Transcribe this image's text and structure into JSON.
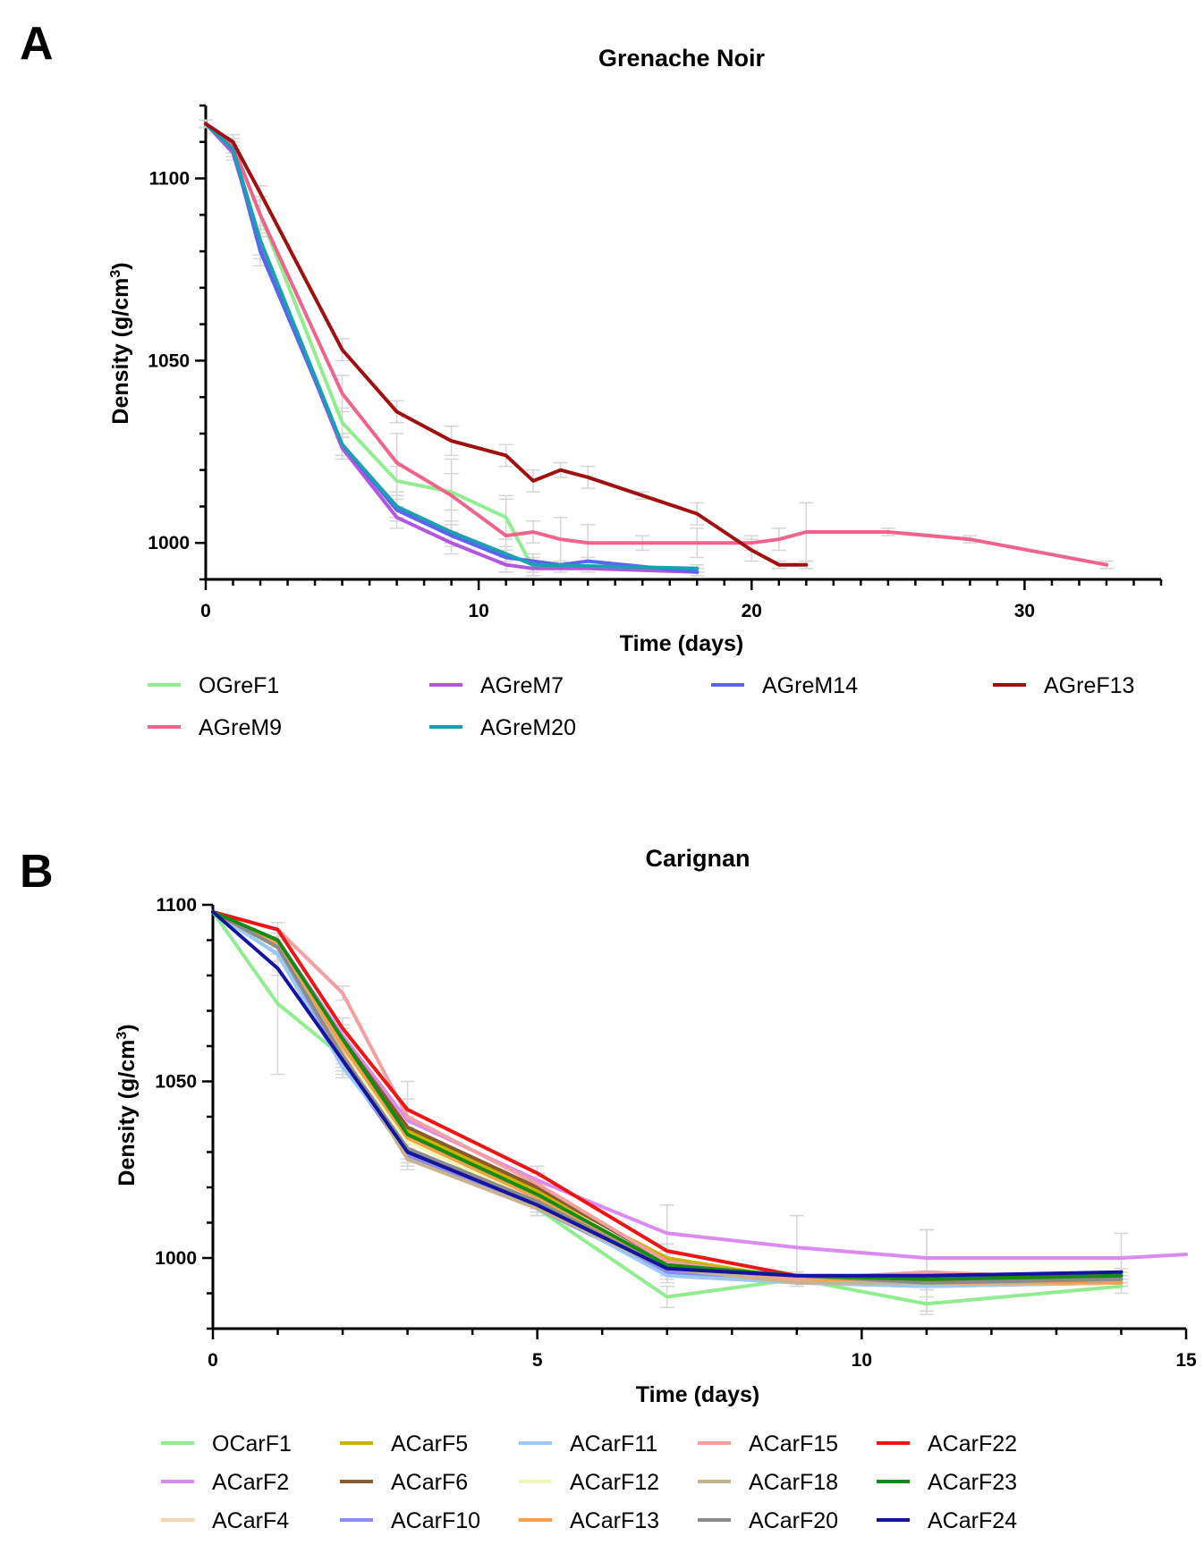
{
  "chart_data": [
    {
      "panel": "A",
      "type": "line",
      "title": "Grenache  Noir",
      "xlabel": "Time (days)",
      "ylabel": "Density (g/cm",
      "ylabel_sup": "3",
      "ylabel_close": ")",
      "xlim": [
        0,
        35
      ],
      "ylim": [
        990,
        1120
      ],
      "xticks": [
        0,
        10,
        20,
        30
      ],
      "yticks": [
        1000,
        1050,
        1100
      ],
      "series": [
        {
          "name": "OGreF1",
          "color": "#90EE90",
          "x": [
            0,
            1,
            2,
            5,
            7,
            9,
            11,
            12
          ],
          "y": [
            1115,
            1109,
            1090,
            1033,
            1017,
            1014,
            1007,
            993
          ],
          "err": [
            1,
            2,
            5,
            4,
            4,
            5,
            6,
            2
          ]
        },
        {
          "name": "AGreM7",
          "color": "#B455E0",
          "x": [
            0,
            1,
            2,
            5,
            7,
            9,
            11,
            12,
            13,
            14,
            18
          ],
          "y": [
            1115,
            1107,
            1082,
            1026,
            1007,
            1000,
            994,
            993,
            993,
            993,
            992
          ],
          "err": [
            1,
            2,
            4,
            3,
            3,
            3,
            2,
            2,
            1,
            1,
            1
          ]
        },
        {
          "name": "AGreM9",
          "color": "#F0648C",
          "x": [
            0,
            1,
            2,
            5,
            7,
            9,
            11,
            12,
            13,
            14,
            16,
            18,
            20,
            21,
            22,
            25,
            28,
            33
          ],
          "y": [
            1115,
            1109,
            1090,
            1041,
            1022,
            1013,
            1002,
            1003,
            1001,
            1000,
            1000,
            1000,
            1000,
            1001,
            1003,
            1003,
            1001,
            994
          ],
          "err": [
            1,
            2,
            5,
            5,
            8,
            10,
            10,
            3,
            6,
            5,
            2,
            4,
            2,
            3,
            8,
            1,
            1,
            1
          ]
        },
        {
          "name": "AGreM14",
          "color": "#5A64EE",
          "x": [
            0,
            1,
            2,
            5,
            7,
            9,
            11,
            12,
            13,
            14,
            18
          ],
          "y": [
            1115,
            1108,
            1080,
            1027,
            1009,
            1002,
            996,
            995,
            994,
            995,
            992
          ],
          "err": [
            1,
            2,
            4,
            3,
            3,
            3,
            2,
            2,
            1,
            1,
            1
          ]
        },
        {
          "name": "AGreM20",
          "color": "#1AA0B0",
          "x": [
            0,
            1,
            2,
            5,
            7,
            9,
            11,
            12,
            18
          ],
          "y": [
            1115,
            1108,
            1083,
            1027,
            1010,
            1003,
            997,
            994,
            993
          ],
          "err": [
            1,
            2,
            4,
            3,
            3,
            3,
            2,
            2,
            1
          ]
        },
        {
          "name": "AGreF13",
          "color": "#A01010",
          "x": [
            0,
            1,
            2,
            5,
            7,
            9,
            11,
            12,
            13,
            14,
            16,
            18,
            20,
            21,
            22
          ],
          "y": [
            1115,
            1110,
            1096,
            1053,
            1036,
            1028,
            1024,
            1017,
            1020,
            1018,
            1013,
            1008,
            998,
            994,
            994
          ],
          "err": [
            1,
            2,
            2,
            3,
            3,
            4,
            3,
            3,
            2,
            3,
            1,
            3,
            3,
            1,
            1
          ]
        }
      ],
      "legend_rows": [
        [
          "OGreF1",
          "AGreM7",
          "AGreM14",
          "AGreF13"
        ],
        [
          "AGreM9",
          "AGreM20"
        ]
      ]
    },
    {
      "panel": "B",
      "type": "line",
      "title": "Carignan",
      "xlabel": "Time (days)",
      "ylabel": "Density (g/cm",
      "ylabel_sup": "3",
      "ylabel_close": ")",
      "xlim": [
        0,
        15
      ],
      "ylim": [
        980,
        1100
      ],
      "xticks": [
        0,
        5,
        10,
        15
      ],
      "yticks": [
        1000,
        1050,
        1100
      ],
      "series": [
        {
          "name": "OCarF1",
          "color": "#90EE90",
          "x": [
            0,
            1,
            2,
            3,
            5,
            7,
            9,
            11,
            14
          ],
          "y": [
            1098,
            1072,
            1057,
            1034,
            1014,
            989,
            994,
            987,
            992
          ],
          "err": [
            0,
            20,
            4,
            3,
            2,
            3,
            2,
            2,
            2
          ]
        },
        {
          "name": "ACarF2",
          "color": "#DA8AF0",
          "x": [
            0,
            1,
            2,
            3,
            5,
            7,
            9,
            11,
            14,
            15
          ],
          "y": [
            1098,
            1090,
            1063,
            1039,
            1022,
            1007,
            1003,
            1000,
            1000,
            1001
          ],
          "err": [
            0,
            2,
            3,
            3,
            2,
            8,
            9,
            8,
            7,
            0
          ]
        },
        {
          "name": "ACarF4",
          "color": "#F5D6B4",
          "x": [
            0,
            1,
            2,
            3,
            5,
            7,
            9,
            11,
            14
          ],
          "y": [
            1098,
            1088,
            1058,
            1030,
            1015,
            996,
            993,
            993,
            993
          ],
          "err": [
            0,
            2,
            3,
            3,
            2,
            2,
            1,
            1,
            1
          ]
        },
        {
          "name": "ACarF5",
          "color": "#C8B400",
          "x": [
            0,
            1,
            2,
            3,
            5,
            7,
            9,
            11,
            14
          ],
          "y": [
            1098,
            1089,
            1061,
            1036,
            1019,
            1000,
            994,
            993,
            993
          ],
          "err": [
            0,
            2,
            3,
            3,
            2,
            2,
            1,
            1,
            1
          ]
        },
        {
          "name": "ACarF6",
          "color": "#8B5A2B",
          "x": [
            0,
            1,
            2,
            3,
            5,
            7,
            9,
            11,
            14
          ],
          "y": [
            1098,
            1089,
            1062,
            1037,
            1020,
            999,
            994,
            994,
            994
          ],
          "err": [
            0,
            2,
            3,
            3,
            2,
            2,
            1,
            1,
            1
          ]
        },
        {
          "name": "ACarF10",
          "color": "#8C8CF0",
          "x": [
            0,
            1,
            2,
            3,
            5,
            7,
            9,
            11,
            14
          ],
          "y": [
            1098,
            1086,
            1055,
            1029,
            1014,
            996,
            993,
            992,
            993
          ],
          "err": [
            0,
            2,
            3,
            3,
            2,
            2,
            1,
            1,
            1
          ]
        },
        {
          "name": "ACarF11",
          "color": "#9CC8F5",
          "x": [
            0,
            1,
            2,
            3,
            5,
            7,
            9,
            11,
            14
          ],
          "y": [
            1098,
            1086,
            1054,
            1031,
            1015,
            995,
            993,
            992,
            993
          ],
          "err": [
            0,
            2,
            3,
            3,
            2,
            2,
            1,
            1,
            1
          ]
        },
        {
          "name": "ACarF12",
          "color": "#F0F5B4",
          "x": [
            0,
            1,
            2,
            3,
            5,
            7,
            9,
            11,
            14
          ],
          "y": [
            1098,
            1088,
            1059,
            1033,
            1016,
            997,
            994,
            993,
            993
          ],
          "err": [
            0,
            2,
            3,
            3,
            2,
            2,
            1,
            1,
            1
          ]
        },
        {
          "name": "ACarF13",
          "color": "#F5A050",
          "x": [
            0,
            1,
            2,
            3,
            5,
            7,
            9,
            11,
            14
          ],
          "y": [
            1098,
            1089,
            1060,
            1034,
            1017,
            998,
            994,
            993,
            993
          ],
          "err": [
            0,
            2,
            3,
            3,
            2,
            2,
            1,
            1,
            1
          ]
        },
        {
          "name": "ACarF15",
          "color": "#F5A0A0",
          "x": [
            0,
            1,
            2,
            3,
            5,
            7,
            9,
            11,
            14
          ],
          "y": [
            1098,
            1093,
            1075,
            1040,
            1021,
            999,
            994,
            996,
            994
          ],
          "err": [
            0,
            2,
            2,
            10,
            2,
            3,
            1,
            12,
            1
          ]
        },
        {
          "name": "ACarF18",
          "color": "#C8B48C",
          "x": [
            0,
            1,
            2,
            3,
            5,
            7,
            9,
            11,
            14
          ],
          "y": [
            1098,
            1088,
            1058,
            1028,
            1014,
            997,
            993,
            993,
            994
          ],
          "err": [
            0,
            2,
            3,
            3,
            2,
            2,
            1,
            1,
            1
          ]
        },
        {
          "name": "ACarF20",
          "color": "#8C8C8C",
          "x": [
            0,
            1,
            2,
            3,
            5,
            7,
            9,
            11,
            14
          ],
          "y": [
            1098,
            1088,
            1057,
            1031,
            1016,
            997,
            995,
            993,
            994
          ],
          "err": [
            0,
            2,
            3,
            3,
            2,
            2,
            1,
            1,
            1
          ]
        },
        {
          "name": "ACarF22",
          "color": "#F01414",
          "x": [
            0,
            1,
            2,
            3,
            5,
            7,
            9,
            11,
            14
          ],
          "y": [
            1098,
            1093,
            1065,
            1042,
            1024,
            1002,
            995,
            994,
            995
          ],
          "err": [
            0,
            2,
            3,
            3,
            2,
            2,
            1,
            1,
            1
          ]
        },
        {
          "name": "ACarF23",
          "color": "#148C14",
          "x": [
            0,
            1,
            2,
            3,
            5,
            7,
            9,
            11,
            14
          ],
          "y": [
            1098,
            1090,
            1062,
            1035,
            1018,
            998,
            995,
            994,
            995
          ],
          "err": [
            0,
            2,
            3,
            3,
            2,
            2,
            1,
            1,
            1
          ]
        },
        {
          "name": "ACarF24",
          "color": "#1414A0",
          "x": [
            0,
            1,
            2,
            3,
            5,
            7,
            9,
            11,
            14
          ],
          "y": [
            1098,
            1082,
            1056,
            1030,
            1015,
            997,
            995,
            995,
            996
          ],
          "err": [
            0,
            2,
            3,
            3,
            2,
            2,
            1,
            1,
            1
          ]
        }
      ],
      "legend_rows": [
        [
          "OCarF1",
          "ACarF5",
          "ACarF11",
          "ACarF15",
          "ACarF22"
        ],
        [
          "ACarF2",
          "ACarF6",
          "ACarF12",
          "ACarF18",
          "ACarF23"
        ],
        [
          "ACarF4",
          "ACarF10",
          "ACarF13",
          "ACarF20",
          "ACarF24"
        ]
      ]
    }
  ]
}
